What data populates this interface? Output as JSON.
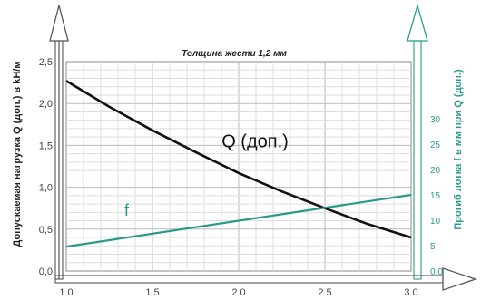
{
  "chart_data": {
    "type": "line",
    "title": "Толщина жести 1,2 мм",
    "ylabel": "Допускаемая нагрузка Q (доп.) в kH/м",
    "y2label": "Прогиб лотка f в мм при Q (доп.)",
    "x_ticks": [
      "1.0",
      "1.5",
      "2.0",
      "2.5",
      "3.0"
    ],
    "y_ticks": [
      "0,0",
      "0,5",
      "1,0",
      "1,5",
      "2,0",
      "2,5"
    ],
    "y2_ticks": [
      "0,0",
      "5",
      "10",
      "15",
      "20",
      "25",
      "30"
    ],
    "xlim": [
      1.0,
      3.0
    ],
    "ylim": [
      0,
      2.5
    ],
    "y2lim": [
      0,
      41.25
    ],
    "grid": true,
    "series": [
      {
        "name": "Q (доп.)",
        "axis": "left",
        "color": "#111111",
        "x": [
          1.0,
          1.25,
          1.5,
          1.75,
          2.0,
          2.25,
          2.5,
          2.75,
          3.0
        ],
        "values": [
          2.27,
          1.96,
          1.68,
          1.42,
          1.17,
          0.95,
          0.75,
          0.56,
          0.4
        ]
      },
      {
        "name": "f",
        "axis": "right",
        "color": "#2a9a8a",
        "x": [
          1.0,
          3.0
        ],
        "values": [
          4.8,
          15.0
        ]
      }
    ],
    "annotations": [
      {
        "text": "Q (доп.)",
        "x": 2.0,
        "y": 1.5,
        "series": 0
      },
      {
        "text": "f",
        "x": 1.35,
        "y": 0.66,
        "series": 1
      }
    ]
  }
}
